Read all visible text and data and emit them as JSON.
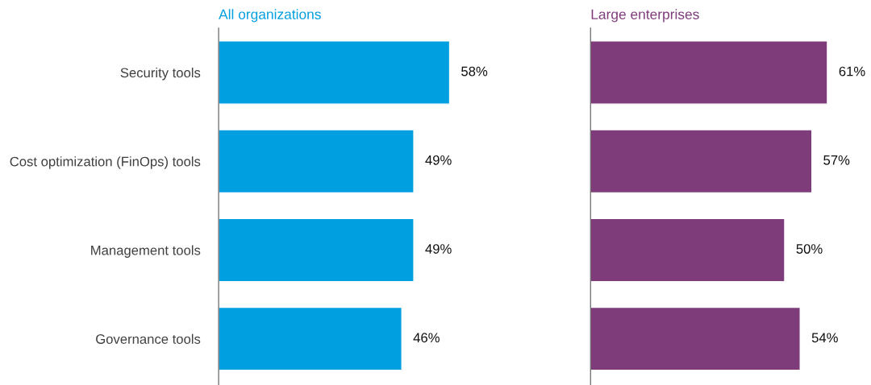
{
  "chart_data": [
    {
      "type": "bar",
      "orientation": "horizontal",
      "title": "All organizations",
      "categories": [
        "Security tools",
        "Cost optimization (FinOps) tools",
        "Management tools",
        "Governance tools"
      ],
      "values": [
        58,
        49,
        49,
        46
      ],
      "color": "#009fe0",
      "data_labels": true,
      "value_labels": [
        "58%",
        "49%",
        "49%",
        "46%"
      ],
      "tick_labels": "y",
      "grid": false,
      "legend": false
    },
    {
      "type": "bar",
      "orientation": "horizontal",
      "title": "Large enterprises",
      "categories": [
        null,
        null,
        null,
        null
      ],
      "values": [
        61,
        57,
        50,
        54
      ],
      "color": "#7f3c7b",
      "data_labels": true,
      "value_labels": [
        "61%",
        "57%",
        "50%",
        "54%"
      ],
      "tick_labels": false,
      "grid": false,
      "legend": false
    }
  ]
}
